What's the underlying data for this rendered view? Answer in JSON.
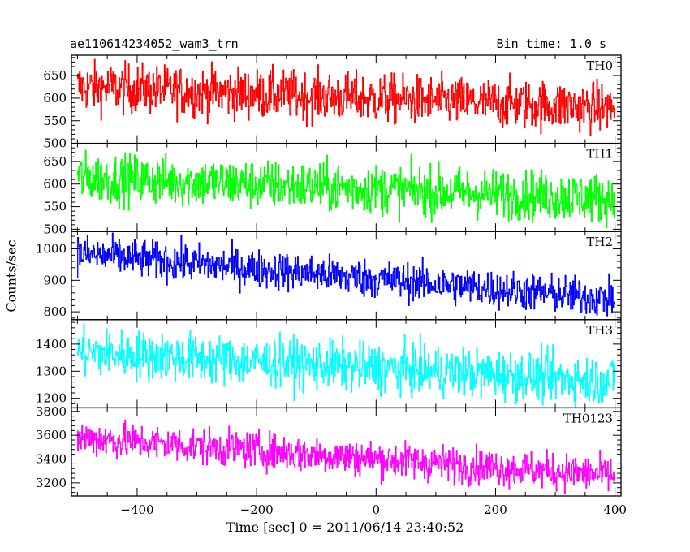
{
  "header": {
    "title": "ae110614234052_wam3_trn",
    "bin_time": "Bin time: 1.0 s"
  },
  "chart_data": {
    "type": "line",
    "xlabel": "Time [sec] 0 = 2011/06/14 23:40:52",
    "ylabel": "Counts/sec",
    "xlim": [
      -510,
      410
    ],
    "x_ticks": [
      -400,
      -200,
      0,
      200,
      400
    ],
    "x_range": [
      -500,
      399
    ],
    "panels": [
      {
        "name": "TH0",
        "color": "#ff0000",
        "ylim": [
          500,
          695
        ],
        "y_ticks": [
          500,
          550,
          600,
          650
        ],
        "start": 625,
        "end": 578,
        "noise": 27
      },
      {
        "name": "TH1",
        "color": "#00ff00",
        "ylim": [
          495,
          690
        ],
        "y_ticks": [
          500,
          550,
          600,
          650
        ],
        "start": 615,
        "end": 568,
        "noise": 27
      },
      {
        "name": "TH2",
        "color": "#0000ff",
        "ylim": [
          775,
          1055
        ],
        "y_ticks": [
          800,
          900,
          1000
        ],
        "start": 985,
        "end": 840,
        "noise": 30
      },
      {
        "name": "TH3",
        "color": "#00ffff",
        "ylim": [
          1165,
          1490
        ],
        "y_ticks": [
          1200,
          1300,
          1400
        ],
        "start": 1370,
        "end": 1265,
        "noise": 45
      },
      {
        "name": "TH0123",
        "color": "#ff00ff",
        "ylim": [
          3090,
          3830
        ],
        "y_ticks": [
          3200,
          3400,
          3600,
          3800
        ],
        "start": 3580,
        "end": 3260,
        "noise": 75
      }
    ]
  }
}
